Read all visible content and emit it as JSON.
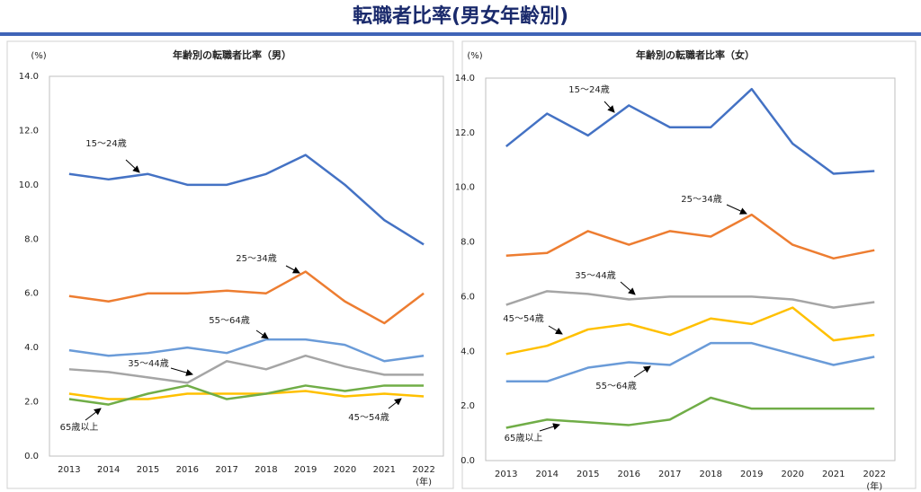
{
  "title": "転職者比率(男女年齢別)",
  "chart_data": [
    {
      "type": "line",
      "title": "年齢別の転職者比率（男）",
      "y_label": "(%)",
      "x_label": "(年)",
      "categories": [
        "2013",
        "2014",
        "2015",
        "2016",
        "2017",
        "2018",
        "2019",
        "2020",
        "2021",
        "2022"
      ],
      "ylim": [
        0,
        14
      ],
      "yticks": [
        {
          "value": 0,
          "label": "0.0"
        },
        {
          "value": 2,
          "label": "2.0"
        },
        {
          "value": 4,
          "label": "4.0"
        },
        {
          "value": 6,
          "label": "6.0"
        },
        {
          "value": 8,
          "label": "8.0"
        },
        {
          "value": 10,
          "label": "10.0"
        },
        {
          "value": 12,
          "label": "12.0"
        },
        {
          "value": 14,
          "label": "14.0"
        }
      ],
      "grid": false,
      "series": [
        {
          "name": "15～24歳",
          "color": "#4472c4",
          "values": [
            10.4,
            10.2,
            10.4,
            10.0,
            10.0,
            10.4,
            11.1,
            10.0,
            8.7,
            7.8
          ]
        },
        {
          "name": "25～34歳",
          "color": "#ed7d31",
          "values": [
            5.9,
            5.7,
            6.0,
            6.0,
            6.1,
            6.0,
            6.8,
            5.7,
            4.9,
            6.0
          ]
        },
        {
          "name": "35～44歳",
          "color": "#a5a5a5",
          "values": [
            3.2,
            3.1,
            2.9,
            2.7,
            3.5,
            3.2,
            3.7,
            3.3,
            3.0,
            3.0
          ]
        },
        {
          "name": "45～54歳",
          "color": "#ffc000",
          "values": [
            2.3,
            2.1,
            2.1,
            2.3,
            2.3,
            2.3,
            2.4,
            2.2,
            2.3,
            2.2
          ]
        },
        {
          "name": "55～64歳",
          "color": "#6a9bd8",
          "values": [
            3.9,
            3.7,
            3.8,
            4.0,
            3.8,
            4.3,
            4.3,
            4.1,
            3.5,
            3.7
          ]
        },
        {
          "name": "65歳以上",
          "color": "#70ad47",
          "values": [
            2.1,
            1.9,
            2.3,
            2.6,
            2.1,
            2.3,
            2.6,
            2.4,
            2.6,
            2.6
          ]
        }
      ]
    },
    {
      "type": "line",
      "title": "年齢別の転職者比率（女）",
      "y_label": "(%)",
      "x_label": "(年)",
      "categories": [
        "2013",
        "2014",
        "2015",
        "2016",
        "2017",
        "2018",
        "2019",
        "2020",
        "2021",
        "2022"
      ],
      "ylim": [
        0,
        14
      ],
      "yticks": [
        {
          "value": 0,
          "label": "0.0"
        },
        {
          "value": 2,
          "label": "2.0"
        },
        {
          "value": 4,
          "label": "4.0"
        },
        {
          "value": 6,
          "label": "6.0"
        },
        {
          "value": 8,
          "label": "8.0"
        },
        {
          "value": 10,
          "label": "10.0"
        },
        {
          "value": 12,
          "label": "12.0"
        },
        {
          "value": 14,
          "label": "14.0"
        }
      ],
      "grid": false,
      "series": [
        {
          "name": "15～24歳",
          "color": "#4472c4",
          "values": [
            11.5,
            12.7,
            11.9,
            13.0,
            12.2,
            12.2,
            13.6,
            11.6,
            10.5,
            10.6
          ]
        },
        {
          "name": "25～34歳",
          "color": "#ed7d31",
          "values": [
            7.5,
            7.6,
            8.4,
            7.9,
            8.4,
            8.2,
            9.0,
            7.9,
            7.4,
            7.7
          ]
        },
        {
          "name": "35～44歳",
          "color": "#a5a5a5",
          "values": [
            5.7,
            6.2,
            6.1,
            5.9,
            6.0,
            6.0,
            6.0,
            5.9,
            5.6,
            5.8
          ]
        },
        {
          "name": "45～54歳",
          "color": "#ffc000",
          "values": [
            3.9,
            4.2,
            4.8,
            5.0,
            4.6,
            5.2,
            5.0,
            5.6,
            4.4,
            4.6
          ]
        },
        {
          "name": "55～64歳",
          "color": "#6a9bd8",
          "values": [
            2.9,
            2.9,
            3.4,
            3.6,
            3.5,
            4.3,
            4.3,
            3.9,
            3.5,
            3.8
          ]
        },
        {
          "name": "65歳以上",
          "color": "#70ad47",
          "values": [
            1.2,
            1.5,
            1.4,
            1.3,
            1.5,
            2.3,
            1.9,
            1.9,
            1.9,
            1.9
          ]
        }
      ]
    }
  ]
}
